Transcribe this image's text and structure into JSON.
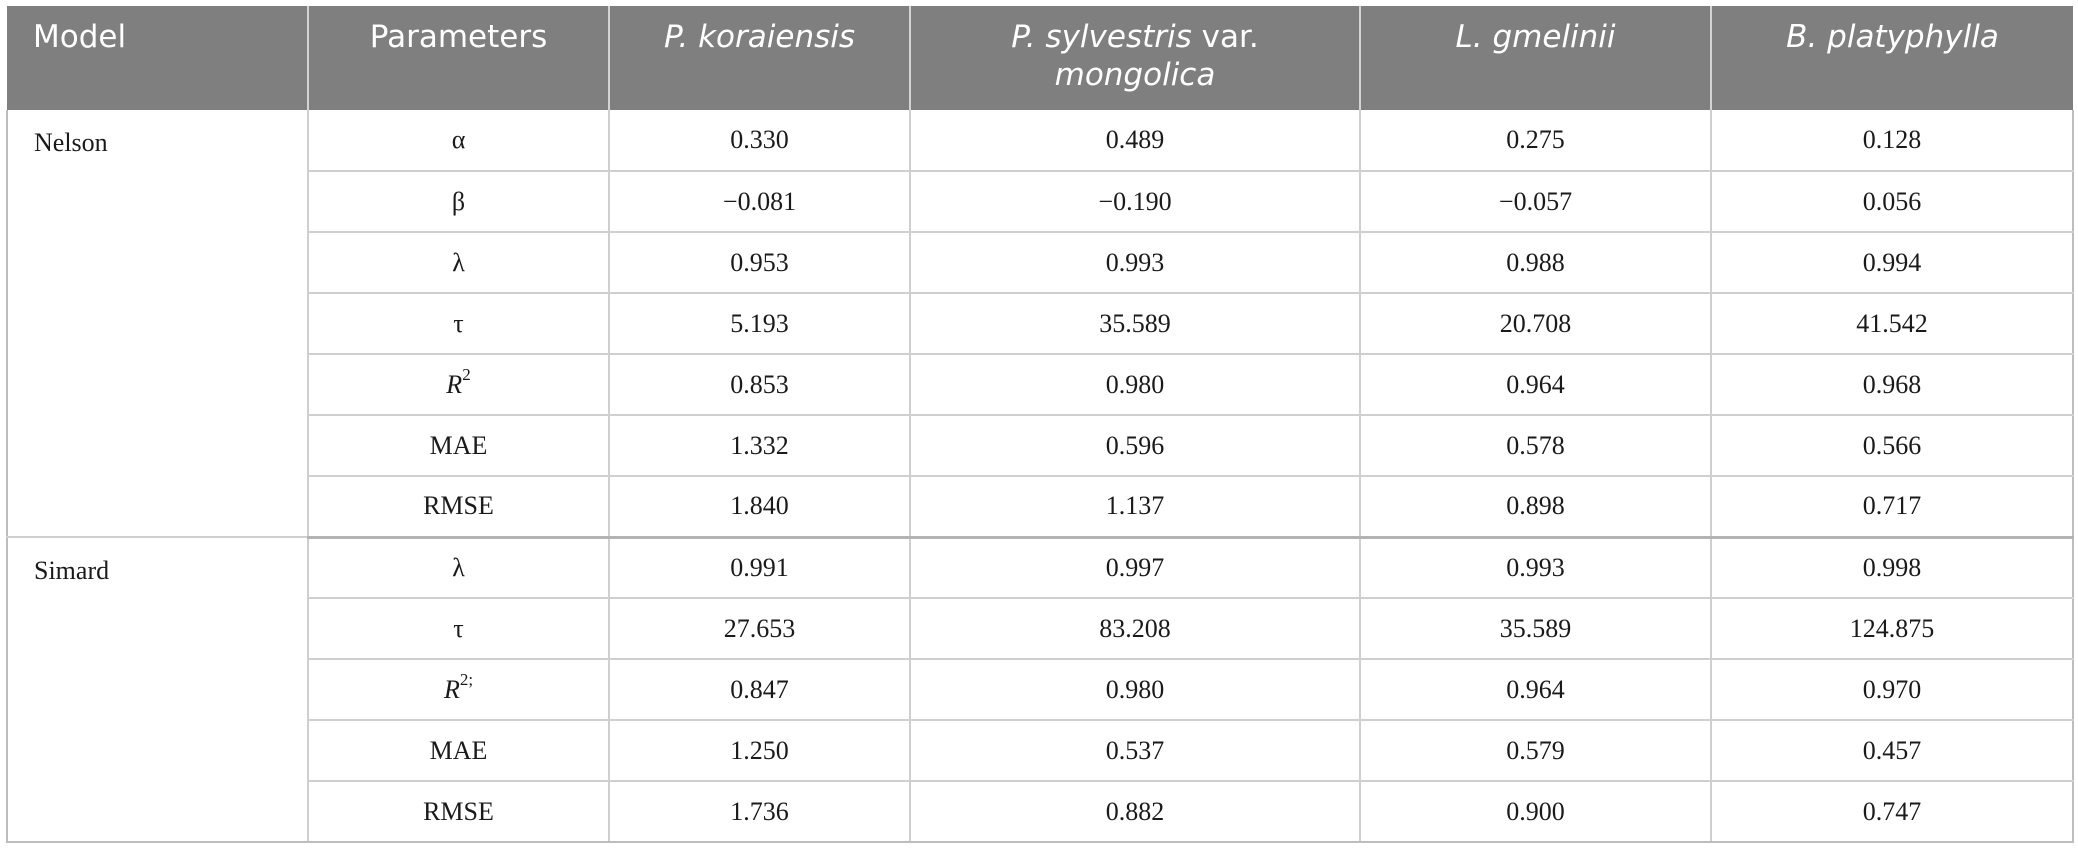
{
  "headers": [
    "Model",
    "Parameters",
    "P. koraiensis",
    "P. sylvestris var. mongolica",
    "L. gmelinii",
    "B. platyphylla"
  ],
  "header_parts": {
    "sylvestris_italic_1": "P. sylvestris",
    "sylvestris_plain": " var.",
    "sylvestris_italic_2": "mongolica"
  },
  "groups": [
    {
      "model": "Nelson",
      "rows": [
        {
          "param": "α",
          "values": [
            "0.330",
            "0.489",
            "0.275",
            "0.128"
          ]
        },
        {
          "param": "β",
          "values": [
            "−0.081",
            "−0.190",
            "−0.057",
            "0.056"
          ]
        },
        {
          "param": "λ",
          "values": [
            "0.953",
            "0.993",
            "0.988",
            "0.994"
          ]
        },
        {
          "param": "τ",
          "values": [
            "5.193",
            "35.589",
            "20.708",
            "41.542"
          ]
        },
        {
          "param_main": "R",
          "param_sup": "2",
          "values": [
            "0.853",
            "0.980",
            "0.964",
            "0.968"
          ]
        },
        {
          "param": "MAE",
          "values": [
            "1.332",
            "0.596",
            "0.578",
            "0.566"
          ]
        },
        {
          "param": "RMSE",
          "values": [
            "1.840",
            "1.137",
            "0.898",
            "0.717"
          ]
        }
      ]
    },
    {
      "model": "Simard",
      "rows": [
        {
          "param": "λ",
          "values": [
            "0.991",
            "0.997",
            "0.993",
            "0.998"
          ]
        },
        {
          "param": "τ",
          "values": [
            "27.653",
            "83.208",
            "35.589",
            "124.875"
          ]
        },
        {
          "param_main": "R",
          "param_sup": "2;",
          "values": [
            "0.847",
            "0.980",
            "0.964",
            "0.970"
          ]
        },
        {
          "param": "MAE",
          "values": [
            "1.250",
            "0.537",
            "0.579",
            "0.457"
          ]
        },
        {
          "param": "RMSE",
          "values": [
            "1.736",
            "0.882",
            "0.900",
            "0.747"
          ]
        }
      ]
    }
  ]
}
